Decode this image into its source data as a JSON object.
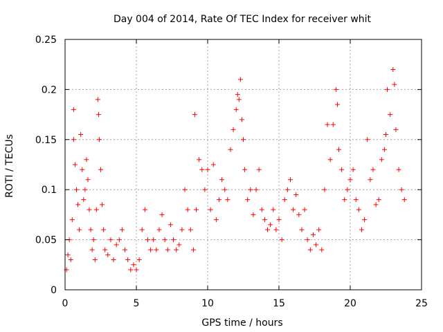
{
  "chart_data": {
    "type": "scatter",
    "title": "Day 004 of 2014, Rate Of TEC Index for receiver whit",
    "xlabel": "GPS time / hours",
    "ylabel": "ROTI / TECUs",
    "xlim": [
      0,
      25
    ],
    "ylim": [
      0,
      0.25
    ],
    "xticks": [
      0,
      5,
      10,
      15,
      20,
      25
    ],
    "xtick_labels": [
      "0",
      "5",
      "10",
      "15",
      "20",
      "25"
    ],
    "yticks": [
      0,
      0.05,
      0.1,
      0.15,
      0.2,
      0.25
    ],
    "ytick_labels": [
      "0",
      "0.05",
      "0.1",
      "0.15",
      "0.2",
      "0.25"
    ],
    "grid": true,
    "marker": "plus",
    "color": "#ff0000",
    "series": [
      {
        "points": [
          [
            0.1,
            0.02
          ],
          [
            0.2,
            0.035
          ],
          [
            0.3,
            0.05
          ],
          [
            0.4,
            0.03
          ],
          [
            0.5,
            0.07
          ],
          [
            0.6,
            0.15
          ],
          [
            0.6,
            0.18
          ],
          [
            0.7,
            0.125
          ],
          [
            0.8,
            0.1
          ],
          [
            0.9,
            0.085
          ],
          [
            1.0,
            0.06
          ],
          [
            1.1,
            0.155
          ],
          [
            1.2,
            0.12
          ],
          [
            1.3,
            0.09
          ],
          [
            1.4,
            0.1
          ],
          [
            1.5,
            0.13
          ],
          [
            1.6,
            0.11
          ],
          [
            1.7,
            0.08
          ],
          [
            1.8,
            0.06
          ],
          [
            1.9,
            0.04
          ],
          [
            2.0,
            0.05
          ],
          [
            2.1,
            0.03
          ],
          [
            2.2,
            0.08
          ],
          [
            2.3,
            0.19
          ],
          [
            2.35,
            0.175
          ],
          [
            2.4,
            0.15
          ],
          [
            2.5,
            0.12
          ],
          [
            2.6,
            0.085
          ],
          [
            2.7,
            0.06
          ],
          [
            2.8,
            0.04
          ],
          [
            3.0,
            0.035
          ],
          [
            3.2,
            0.05
          ],
          [
            3.4,
            0.03
          ],
          [
            3.6,
            0.045
          ],
          [
            3.8,
            0.05
          ],
          [
            4.0,
            0.06
          ],
          [
            4.2,
            0.04
          ],
          [
            4.4,
            0.03
          ],
          [
            4.6,
            0.02
          ],
          [
            4.8,
            0.025
          ],
          [
            5.0,
            0.02
          ],
          [
            5.2,
            0.03
          ],
          [
            5.4,
            0.06
          ],
          [
            5.6,
            0.08
          ],
          [
            5.8,
            0.05
          ],
          [
            6.0,
            0.04
          ],
          [
            6.2,
            0.05
          ],
          [
            6.4,
            0.04
          ],
          [
            6.6,
            0.06
          ],
          [
            6.8,
            0.075
          ],
          [
            7.0,
            0.05
          ],
          [
            7.2,
            0.04
          ],
          [
            7.4,
            0.065
          ],
          [
            7.6,
            0.05
          ],
          [
            7.8,
            0.04
          ],
          [
            8.0,
            0.045
          ],
          [
            8.2,
            0.06
          ],
          [
            8.4,
            0.1
          ],
          [
            8.6,
            0.08
          ],
          [
            8.8,
            0.06
          ],
          [
            9.0,
            0.04
          ],
          [
            9.1,
            0.175
          ],
          [
            9.2,
            0.08
          ],
          [
            9.4,
            0.13
          ],
          [
            9.6,
            0.12
          ],
          [
            9.8,
            0.1
          ],
          [
            10.0,
            0.12
          ],
          [
            10.2,
            0.08
          ],
          [
            10.4,
            0.125
          ],
          [
            10.6,
            0.07
          ],
          [
            10.8,
            0.09
          ],
          [
            11.0,
            0.11
          ],
          [
            11.2,
            0.1
          ],
          [
            11.4,
            0.09
          ],
          [
            11.6,
            0.14
          ],
          [
            11.8,
            0.16
          ],
          [
            12.0,
            0.18
          ],
          [
            12.1,
            0.195
          ],
          [
            12.2,
            0.19
          ],
          [
            12.3,
            0.21
          ],
          [
            12.4,
            0.17
          ],
          [
            12.5,
            0.15
          ],
          [
            12.6,
            0.12
          ],
          [
            12.8,
            0.09
          ],
          [
            13.0,
            0.1
          ],
          [
            13.2,
            0.075
          ],
          [
            13.4,
            0.1
          ],
          [
            13.6,
            0.12
          ],
          [
            13.8,
            0.08
          ],
          [
            14.0,
            0.07
          ],
          [
            14.2,
            0.06
          ],
          [
            14.4,
            0.065
          ],
          [
            14.6,
            0.08
          ],
          [
            14.8,
            0.06
          ],
          [
            15.0,
            0.07
          ],
          [
            15.2,
            0.05
          ],
          [
            15.4,
            0.09
          ],
          [
            15.6,
            0.1
          ],
          [
            15.8,
            0.11
          ],
          [
            16.0,
            0.08
          ],
          [
            16.2,
            0.095
          ],
          [
            16.4,
            0.075
          ],
          [
            16.6,
            0.06
          ],
          [
            16.8,
            0.08
          ],
          [
            17.0,
            0.05
          ],
          [
            17.2,
            0.04
          ],
          [
            17.4,
            0.055
          ],
          [
            17.6,
            0.045
          ],
          [
            17.8,
            0.06
          ],
          [
            18.0,
            0.04
          ],
          [
            18.2,
            0.1
          ],
          [
            18.4,
            0.165
          ],
          [
            18.6,
            0.13
          ],
          [
            18.8,
            0.165
          ],
          [
            19.0,
            0.2
          ],
          [
            19.1,
            0.185
          ],
          [
            19.2,
            0.14
          ],
          [
            19.4,
            0.12
          ],
          [
            19.6,
            0.09
          ],
          [
            19.8,
            0.1
          ],
          [
            20.0,
            0.11
          ],
          [
            20.2,
            0.12
          ],
          [
            20.4,
            0.09
          ],
          [
            20.6,
            0.08
          ],
          [
            20.8,
            0.06
          ],
          [
            21.0,
            0.07
          ],
          [
            21.2,
            0.15
          ],
          [
            21.4,
            0.11
          ],
          [
            21.6,
            0.12
          ],
          [
            21.8,
            0.085
          ],
          [
            22.0,
            0.09
          ],
          [
            22.2,
            0.13
          ],
          [
            22.4,
            0.14
          ],
          [
            22.5,
            0.155
          ],
          [
            22.6,
            0.2
          ],
          [
            22.8,
            0.175
          ],
          [
            23.0,
            0.22
          ],
          [
            23.1,
            0.205
          ],
          [
            23.2,
            0.16
          ],
          [
            23.4,
            0.12
          ],
          [
            23.6,
            0.1
          ],
          [
            23.8,
            0.09
          ]
        ]
      }
    ]
  }
}
